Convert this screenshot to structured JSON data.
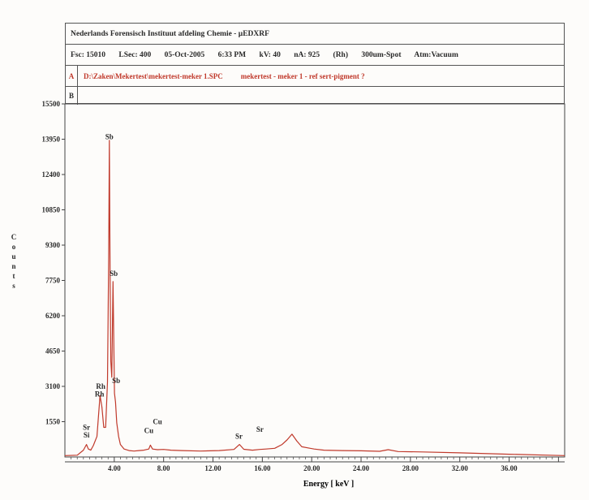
{
  "header": {
    "title": "Nederlands Forensisch Instituut afdeling Chemie - µEDXRF",
    "info": [
      "Fsc: 15010",
      "LSec: 400",
      "05-Oct-2005",
      "6:33 PM",
      "kV: 40",
      "nA: 925",
      "(Rh)",
      "300um-Spot",
      "Atm:Vacuum"
    ],
    "trace_a_label": "A",
    "trace_a_file": "D:\\Zaken\\Mekertest\\mekertest-meker 1.SPC",
    "trace_a_desc": "mekertest - meker 1 - ref sert-pigment ?",
    "trace_b_label": "B"
  },
  "chart_data": {
    "type": "line",
    "xlabel": "Energy [ keV ]",
    "ylabel": "Counts",
    "xlim": [
      0,
      40.5
    ],
    "ylim": [
      0,
      15500
    ],
    "x_ticks": [
      4,
      8,
      12,
      16,
      20,
      24,
      28,
      32,
      36
    ],
    "x_tick_labels": [
      "4.00",
      "8.00",
      "12.00",
      "16.00",
      "20.00",
      "24.00",
      "28.00",
      "32.00",
      "36.00"
    ],
    "y_ticks": [
      1550,
      3100,
      4650,
      6200,
      7750,
      9300,
      10850,
      12400,
      13950,
      15500
    ],
    "y_tick_labels": [
      "1550",
      "3100",
      "4650",
      "6200",
      "7750",
      "9300",
      "10850",
      "12400",
      "13950",
      "15500"
    ],
    "series": [
      {
        "color": "#c0392b",
        "x": [
          0.0,
          1.0,
          1.5,
          1.75,
          1.9,
          2.1,
          2.3,
          2.6,
          2.85,
          3.0,
          3.15,
          3.3,
          3.45,
          3.55,
          3.6,
          3.66,
          3.72,
          3.8,
          3.9,
          3.95,
          4.02,
          4.1,
          4.2,
          4.35,
          4.5,
          4.8,
          5.2,
          5.6,
          6.0,
          6.4,
          6.8,
          6.93,
          7.1,
          7.5,
          8.0,
          8.6,
          9.5,
          11.0,
          12.5,
          13.7,
          14.15,
          14.5,
          15.2,
          15.8,
          16.3,
          17.0,
          17.6,
          18.0,
          18.4,
          18.8,
          19.2,
          19.7,
          20.2,
          21.0,
          22.5,
          24.0,
          25.5,
          26.2,
          27.0,
          29.0,
          32.0,
          36.0,
          40.5
        ],
        "y": [
          60,
          80,
          300,
          550,
          350,
          300,
          500,
          900,
          2700,
          2200,
          1300,
          1300,
          3300,
          9000,
          13900,
          8000,
          4200,
          3500,
          7700,
          5500,
          2800,
          2400,
          1500,
          900,
          550,
          350,
          280,
          260,
          280,
          300,
          350,
          520,
          350,
          320,
          330,
          300,
          280,
          260,
          280,
          330,
          550,
          340,
          300,
          330,
          350,
          380,
          550,
          750,
          1000,
          700,
          450,
          400,
          350,
          300,
          280,
          270,
          250,
          320,
          240,
          220,
          180,
          120,
          60
        ]
      }
    ],
    "annotations": [
      {
        "text": "Sb",
        "x": 3.6,
        "y": 13950
      },
      {
        "text": "Sb",
        "x": 3.95,
        "y": 7950
      },
      {
        "text": "Sb",
        "x": 4.15,
        "y": 3250
      },
      {
        "text": "Rh",
        "x": 2.9,
        "y": 3000
      },
      {
        "text": "Rh",
        "x": 2.8,
        "y": 2650
      },
      {
        "text": "Sr",
        "x": 1.75,
        "y": 1200
      },
      {
        "text": "Si",
        "x": 1.75,
        "y": 850
      },
      {
        "text": "Cu",
        "x": 7.5,
        "y": 1450
      },
      {
        "text": "Cu",
        "x": 6.8,
        "y": 1050
      },
      {
        "text": "Sr",
        "x": 14.1,
        "y": 800
      },
      {
        "text": "Sr",
        "x": 15.8,
        "y": 1100
      }
    ]
  }
}
